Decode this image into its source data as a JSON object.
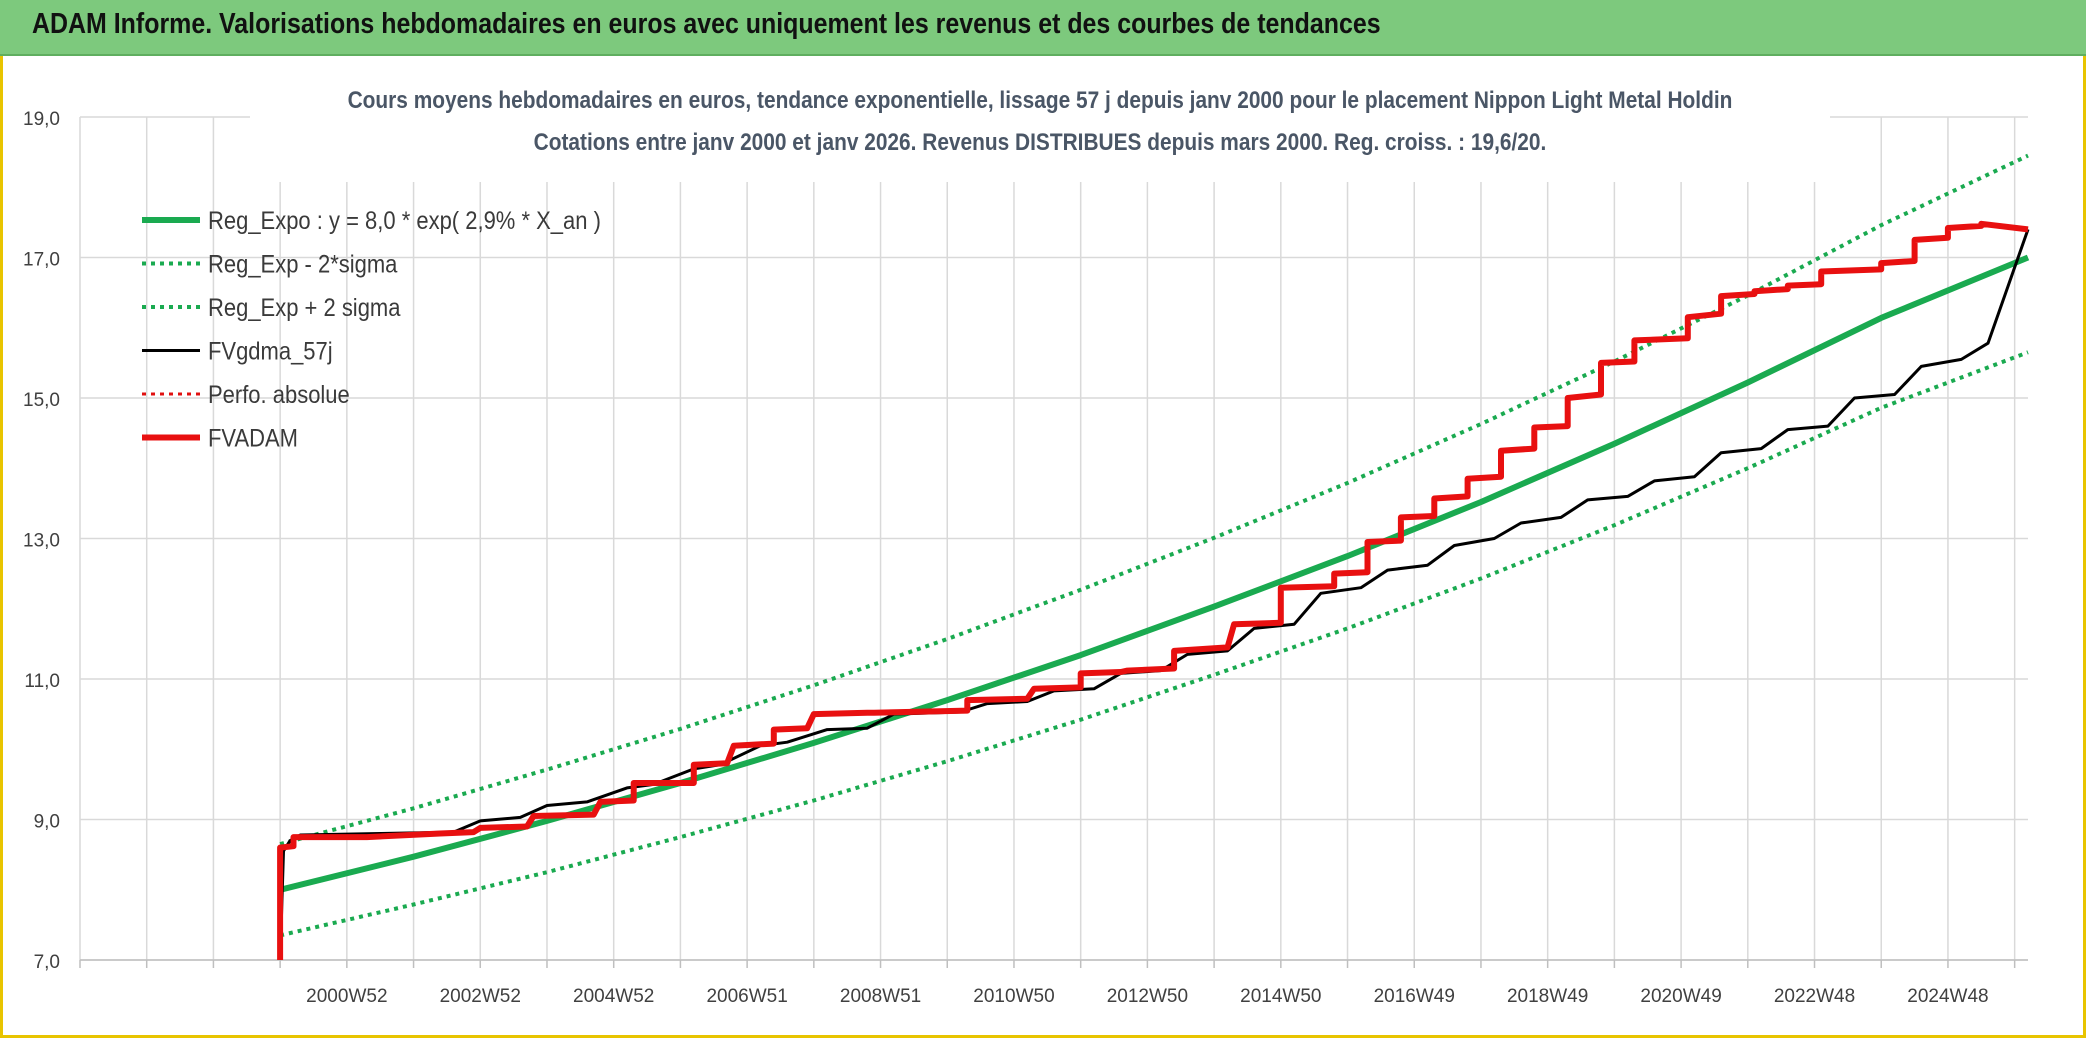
{
  "banner": {
    "title": "ADAM Informe. Valorisations hebdomadaires en euros avec uniquement les revenus et des courbes de tendances"
  },
  "chart_data": {
    "type": "line",
    "title": "Cours moyens hebdomadaires en euros, tendance exponentielle, lissage 57 j depuis janv 2000 pour le placement Nippon Light Metal Holdin",
    "subtitle": "Cotations entre janv 2000 et janv 2026. Revenus DISTRIBUES depuis mars 2000. Reg. croiss. : 19,6/20.",
    "xlabel": "",
    "ylabel": "",
    "xlim": [
      1997,
      2026.2
    ],
    "ylim": [
      7.0,
      19.0
    ],
    "y_ticks": [
      7.0,
      9.0,
      11.0,
      13.0,
      15.0,
      17.0,
      19.0
    ],
    "y_tick_labels": [
      "7,0",
      "9,0",
      "11,0",
      "13,0",
      "15,0",
      "17,0",
      "19,0"
    ],
    "x_gridlines": [
      1997,
      1998,
      1999,
      2000,
      2001,
      2002,
      2003,
      2004,
      2005,
      2006,
      2007,
      2008,
      2009,
      2010,
      2011,
      2012,
      2013,
      2014,
      2015,
      2016,
      2017,
      2018,
      2019,
      2020,
      2021,
      2022,
      2023,
      2024,
      2025,
      2026
    ],
    "x_tick_labels": [
      {
        "x": 2001,
        "label": "2000W52"
      },
      {
        "x": 2003,
        "label": "2002W52"
      },
      {
        "x": 2005,
        "label": "2004W52"
      },
      {
        "x": 2007,
        "label": "2006W51"
      },
      {
        "x": 2009,
        "label": "2008W51"
      },
      {
        "x": 2011,
        "label": "2010W50"
      },
      {
        "x": 2013,
        "label": "2012W50"
      },
      {
        "x": 2015,
        "label": "2014W50"
      },
      {
        "x": 2017,
        "label": "2016W49"
      },
      {
        "x": 2019,
        "label": "2018W49"
      },
      {
        "x": 2021,
        "label": "2020W49"
      },
      {
        "x": 2023,
        "label": "2022W48"
      },
      {
        "x": 2025,
        "label": "2024W48"
      }
    ],
    "grid": true,
    "legend_position": "top-left",
    "series": [
      {
        "name": "Reg_Expo : y = 8,0 * exp( 2,9% *  X_an )",
        "color": "#1aaa50",
        "style": "solid",
        "width": 6,
        "x": [
          2000,
          2002,
          2004,
          2006,
          2008,
          2010,
          2012,
          2014,
          2016,
          2018,
          2020,
          2022,
          2024,
          2026.2
        ],
        "y": [
          8.0,
          8.47,
          8.98,
          9.52,
          10.09,
          10.7,
          11.34,
          12.03,
          12.75,
          13.52,
          14.35,
          15.22,
          16.14,
          17.0
        ]
      },
      {
        "name": "Reg_Exp - 2*sigma",
        "color": "#1aaa50",
        "style": "dotted",
        "width": 4,
        "x": [
          2000,
          2002,
          2004,
          2006,
          2008,
          2010,
          2012,
          2014,
          2016,
          2018,
          2020,
          2022,
          2024,
          2026.2
        ],
        "y": [
          7.35,
          7.79,
          8.25,
          8.75,
          9.27,
          9.83,
          10.42,
          11.06,
          11.72,
          12.43,
          13.19,
          14.0,
          14.86,
          15.65
        ]
      },
      {
        "name": "Reg_Exp + 2 sigma",
        "color": "#1aaa50",
        "style": "dotted",
        "width": 4,
        "x": [
          2000,
          2002,
          2004,
          2006,
          2008,
          2010,
          2012,
          2014,
          2016,
          2018,
          2020,
          2022,
          2024,
          2026.2
        ],
        "y": [
          8.65,
          9.16,
          9.71,
          10.29,
          10.91,
          11.57,
          12.27,
          13.01,
          13.79,
          14.63,
          15.52,
          16.46,
          17.46,
          18.45
        ]
      },
      {
        "name": "FVgdma_57j",
        "color": "#000000",
        "style": "solid",
        "width": 3,
        "x": [
          2000.0,
          2000.05,
          2000.15,
          2000.3,
          2001.5,
          2002.6,
          2003.0,
          2003.6,
          2004.0,
          2004.6,
          2005.2,
          2005.6,
          2006.2,
          2006.6,
          2007.2,
          2007.6,
          2008.2,
          2008.8,
          2009.2,
          2010.2,
          2010.6,
          2011.2,
          2011.6,
          2012.2,
          2012.6,
          2013.2,
          2013.6,
          2014.2,
          2014.6,
          2015.2,
          2015.6,
          2016.2,
          2016.6,
          2017.2,
          2017.6,
          2018.2,
          2018.6,
          2019.2,
          2019.6,
          2020.2,
          2020.6,
          2021.2,
          2021.6,
          2022.2,
          2022.6,
          2023.2,
          2023.6,
          2024.2,
          2024.6,
          2025.2,
          2025.6,
          2026.2
        ],
        "y": [
          7.0,
          8.55,
          8.7,
          8.78,
          8.8,
          8.82,
          8.98,
          9.03,
          9.2,
          9.25,
          9.45,
          9.5,
          9.72,
          9.78,
          10.05,
          10.1,
          10.28,
          10.3,
          10.5,
          10.53,
          10.65,
          10.68,
          10.83,
          10.86,
          11.08,
          11.12,
          11.35,
          11.4,
          11.72,
          11.78,
          12.22,
          12.3,
          12.55,
          12.62,
          12.9,
          13.0,
          13.22,
          13.3,
          13.55,
          13.6,
          13.82,
          13.88,
          14.22,
          14.28,
          14.55,
          14.6,
          15.0,
          15.05,
          15.45,
          15.55,
          15.78,
          17.4
        ]
      },
      {
        "name": "Perfo. absolue",
        "color": "#e01010",
        "style": "dotted",
        "width": 3,
        "x": [],
        "y": []
      },
      {
        "name": "FVADAM",
        "color": "#e81010",
        "style": "solid",
        "width": 6,
        "x": [
          2000.0,
          2000.0,
          2000.2,
          2000.2,
          2001.3,
          2002.4,
          2002.9,
          2003.0,
          2003.7,
          2003.8,
          2004.7,
          2004.8,
          2005.3,
          2005.3,
          2006.2,
          2006.2,
          2006.7,
          2006.8,
          2007.4,
          2007.4,
          2007.9,
          2008.0,
          2008.8,
          2008.9,
          2010.3,
          2010.3,
          2011.2,
          2011.3,
          2012.0,
          2012.0,
          2012.6,
          2012.7,
          2013.4,
          2013.4,
          2014.2,
          2014.3,
          2015.0,
          2015.0,
          2015.8,
          2015.8,
          2016.3,
          2016.3,
          2016.8,
          2016.8,
          2017.3,
          2017.3,
          2017.8,
          2017.8,
          2018.3,
          2018.3,
          2018.8,
          2018.8,
          2019.3,
          2019.3,
          2019.8,
          2019.8,
          2020.3,
          2020.3,
          2021.1,
          2021.1,
          2021.6,
          2021.6,
          2022.1,
          2022.1,
          2022.6,
          2022.6,
          2023.1,
          2023.1,
          2024.0,
          2024.0,
          2024.5,
          2024.5,
          2025.0,
          2025.0,
          2025.5,
          2025.5,
          2026.2
        ],
        "y": [
          7.0,
          8.6,
          8.62,
          8.75,
          8.75,
          8.8,
          8.82,
          8.88,
          8.9,
          9.05,
          9.07,
          9.25,
          9.27,
          9.52,
          9.52,
          9.78,
          9.8,
          10.05,
          10.08,
          10.28,
          10.3,
          10.5,
          10.52,
          10.52,
          10.55,
          10.7,
          10.72,
          10.86,
          10.88,
          11.08,
          11.1,
          11.12,
          11.15,
          11.4,
          11.45,
          11.78,
          11.8,
          12.3,
          12.32,
          12.5,
          12.52,
          12.95,
          12.97,
          13.3,
          13.32,
          13.57,
          13.6,
          13.85,
          13.88,
          14.25,
          14.28,
          14.58,
          14.6,
          15.0,
          15.05,
          15.5,
          15.52,
          15.82,
          15.85,
          16.15,
          16.2,
          16.45,
          16.48,
          16.52,
          16.55,
          16.6,
          16.62,
          16.8,
          16.83,
          16.92,
          16.95,
          17.25,
          17.28,
          17.42,
          17.45,
          17.48,
          17.4
        ]
      }
    ]
  }
}
